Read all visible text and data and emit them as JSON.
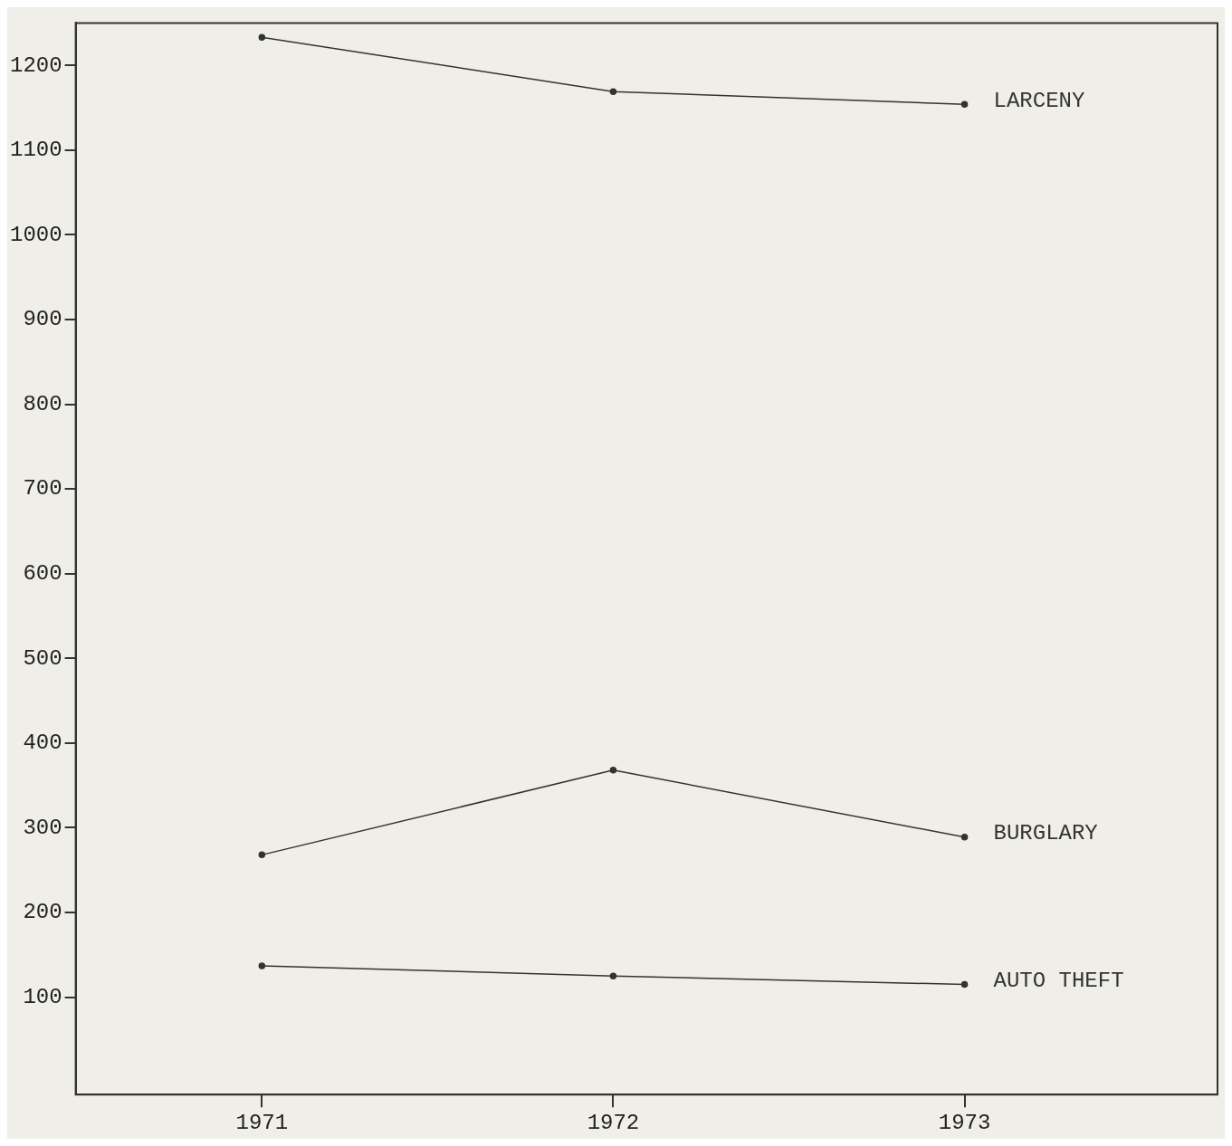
{
  "chart_data": {
    "type": "line",
    "x": [
      1971,
      1972,
      1973
    ],
    "xlim": [
      1970.47,
      1973.72
    ],
    "xticks": [
      1971,
      1972,
      1973
    ],
    "ylim": [
      -15,
      1250
    ],
    "yticks": [
      100,
      200,
      300,
      400,
      500,
      600,
      700,
      800,
      900,
      1000,
      1100,
      1200
    ],
    "grid": false,
    "legend": false,
    "marker": "circle",
    "line_style": "solid",
    "series": [
      {
        "name": "LARCENY",
        "color": "#333333",
        "values": [
          1233,
          1169,
          1154
        ]
      },
      {
        "name": "BURGLARY",
        "color": "#333333",
        "values": [
          268,
          368,
          289
        ]
      },
      {
        "name": "AUTO THEFT",
        "color": "#333333",
        "values": [
          137,
          125,
          115
        ]
      }
    ]
  }
}
